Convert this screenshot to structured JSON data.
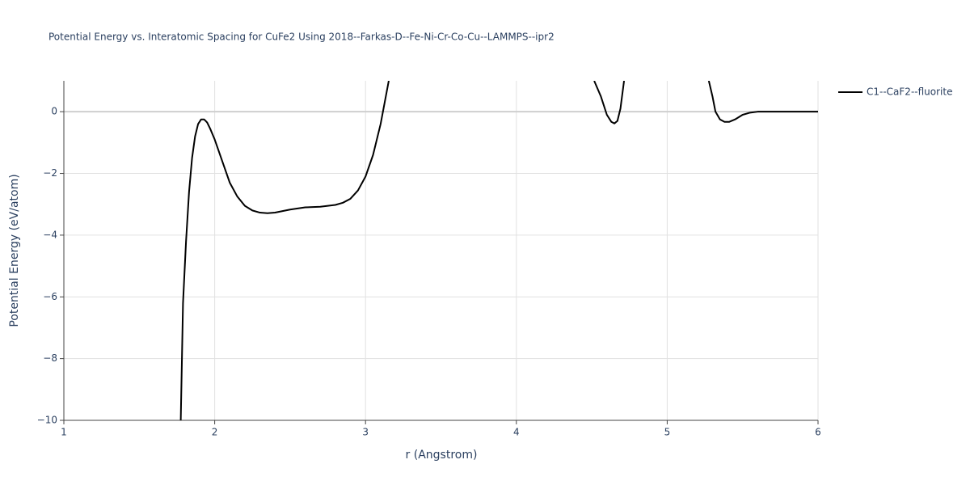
{
  "chart_data": {
    "type": "line",
    "title": "Potential Energy vs. Interatomic Spacing for CuFe2 Using 2018--Farkas-D--Fe-Ni-Cr-Co-Cu--LAMMPS--ipr2",
    "x_label": "r (Angstrom)",
    "y_label": "Potential Energy (eV/atom)",
    "x": [
      1.775,
      1.79,
      1.81,
      1.83,
      1.85,
      1.87,
      1.89,
      1.91,
      1.93,
      1.95,
      1.97,
      2.0,
      2.05,
      2.1,
      2.15,
      2.2,
      2.25,
      2.3,
      2.35,
      2.4,
      2.5,
      2.6,
      2.7,
      2.8,
      2.85,
      2.9,
      2.95,
      3.0,
      3.05,
      3.1,
      3.154,
      3.5,
      4.516,
      4.56,
      4.6,
      4.63,
      4.65,
      4.67,
      4.69,
      4.714,
      5.0,
      5.276,
      5.3,
      5.32,
      5.35,
      5.38,
      5.41,
      5.45,
      5.5,
      5.55,
      5.6,
      5.7,
      5.8,
      6.0
    ],
    "series": [
      {
        "name": "C1--CaF2--fluorite",
        "color": "#000000",
        "values": [
          -10,
          -6.2,
          -4.2,
          -2.6,
          -1.5,
          -0.8,
          -0.4,
          -0.25,
          -0.25,
          -0.35,
          -0.55,
          -0.9,
          -1.6,
          -2.3,
          -2.75,
          -3.05,
          -3.2,
          -3.27,
          -3.29,
          -3.27,
          -3.17,
          -3.1,
          -3.08,
          -3.02,
          -2.95,
          -2.82,
          -2.55,
          -2.1,
          -1.4,
          -0.4,
          1.0,
          null,
          1.0,
          0.5,
          -0.1,
          -0.33,
          -0.38,
          -0.3,
          0.1,
          1.0,
          null,
          1.0,
          0.5,
          0.0,
          -0.25,
          -0.33,
          -0.33,
          -0.25,
          -0.1,
          -0.03,
          0.0,
          0.0,
          0.0,
          0.0
        ]
      }
    ],
    "xlim": [
      1,
      6
    ],
    "ylim": [
      -10,
      1
    ],
    "xticks": [
      1,
      2,
      3,
      4,
      5,
      6
    ],
    "yticks": [
      {
        "value": -10,
        "label": "−10"
      },
      {
        "value": -8,
        "label": "−8"
      },
      {
        "value": -6,
        "label": "−6"
      },
      {
        "value": -4,
        "label": "−4"
      },
      {
        "value": -2,
        "label": "−2"
      },
      0
    ],
    "grid": true,
    "legend": "right"
  }
}
